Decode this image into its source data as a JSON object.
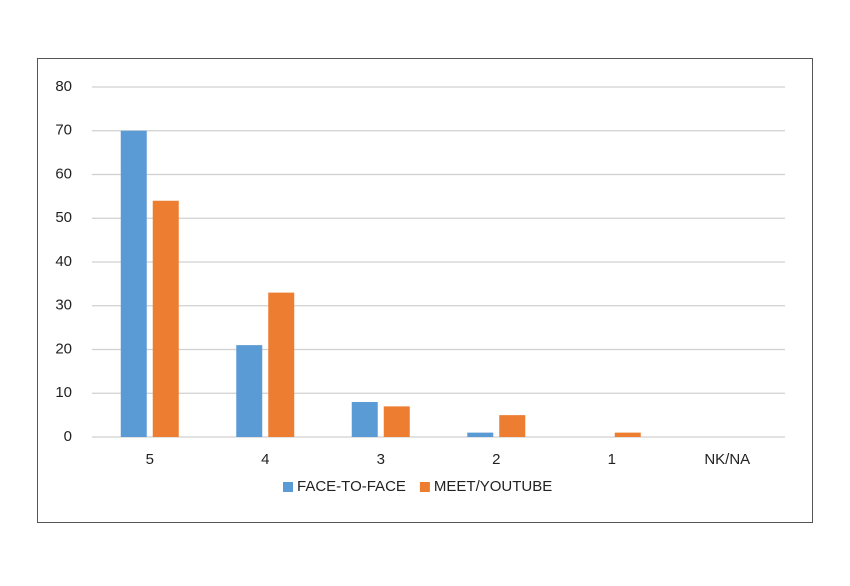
{
  "chart_data": {
    "type": "bar",
    "categories": [
      "5",
      "4",
      "3",
      "2",
      "1",
      "NK/NA"
    ],
    "series": [
      {
        "name": "FACE-TO-FACE",
        "color": "#5b9bd5",
        "values": [
          70,
          21,
          8,
          1,
          0,
          0
        ]
      },
      {
        "name": "MEET/YOUTUBE",
        "color": "#ed7d31",
        "values": [
          54,
          33,
          7,
          5,
          1,
          0
        ]
      }
    ],
    "ylim": [
      0,
      80
    ],
    "yticks": [
      0,
      10,
      20,
      30,
      40,
      50,
      60,
      70,
      80
    ],
    "grid": true,
    "legend": "bottom"
  }
}
